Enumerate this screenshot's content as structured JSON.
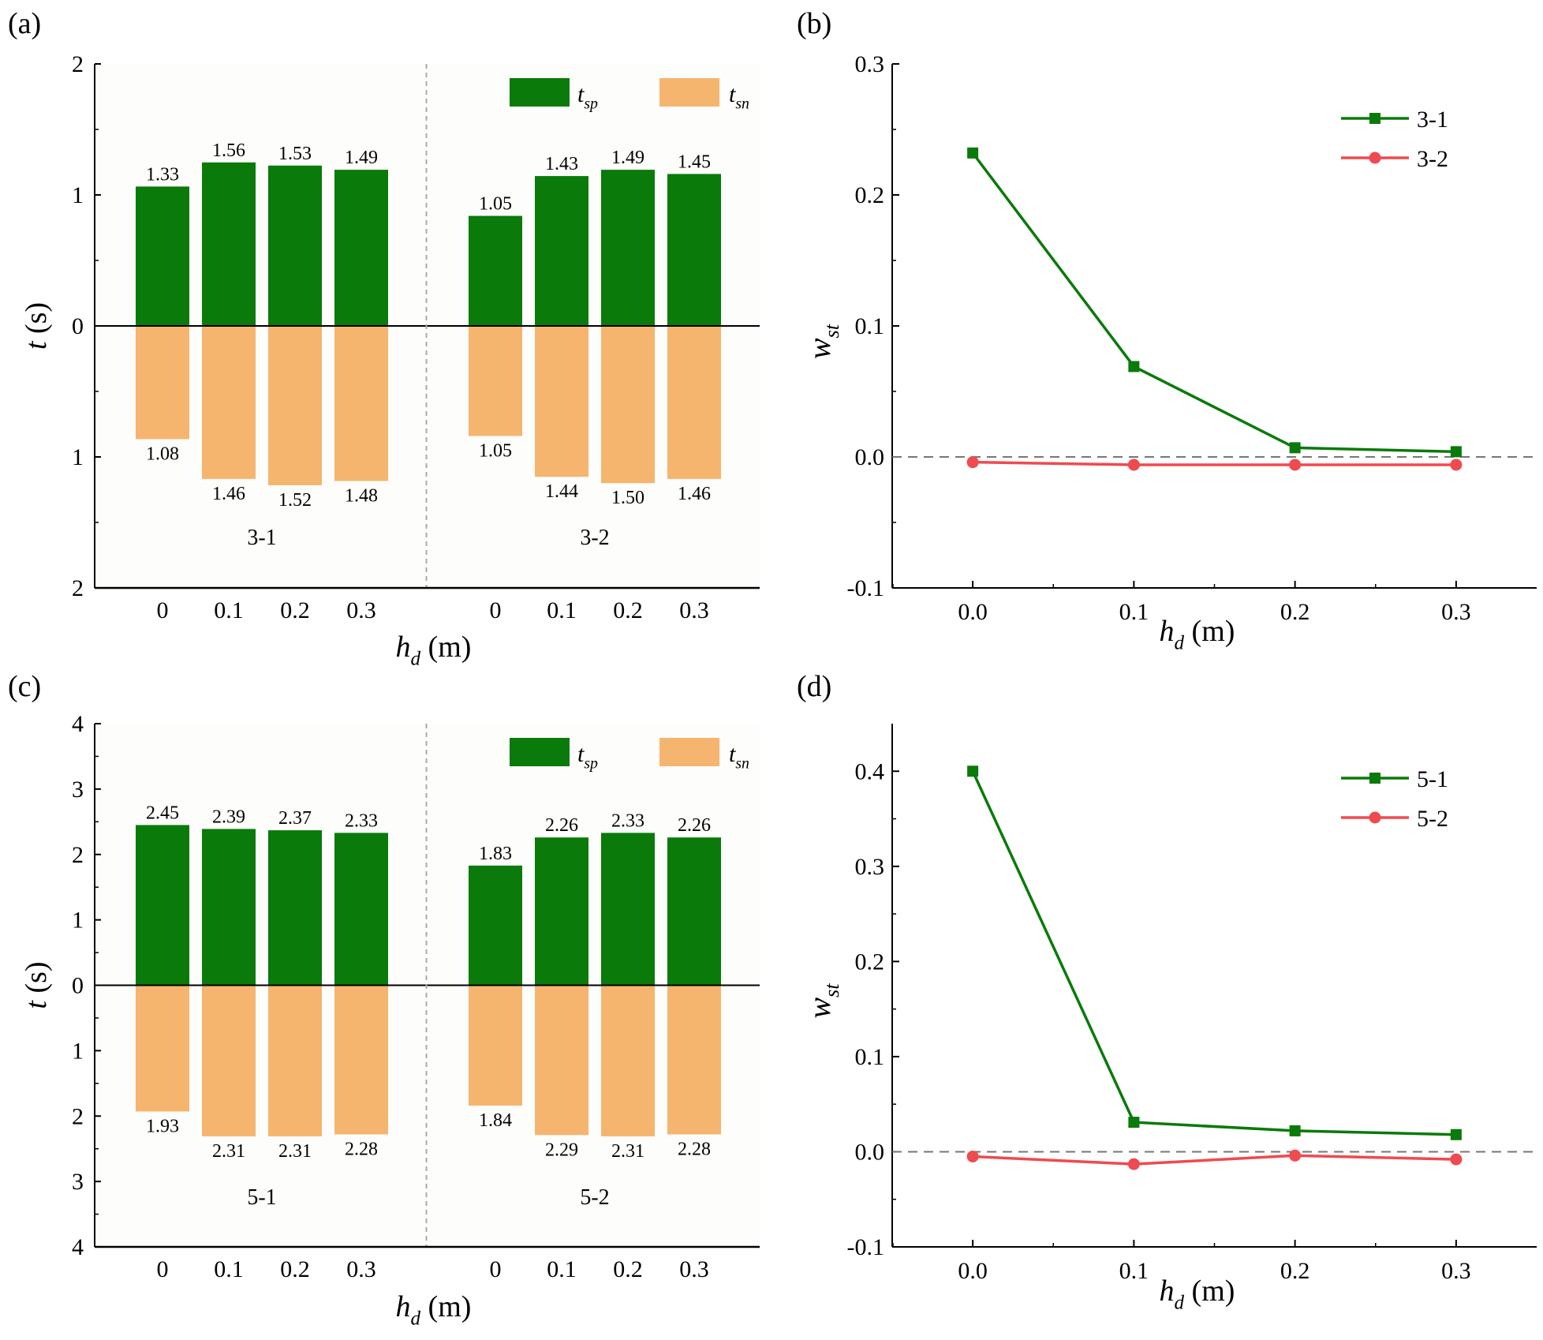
{
  "colors": {
    "positive": "#0a7a0a",
    "negative": "#f5b56f",
    "line_a": "#0a7a0a",
    "line_b": "#ef4a4f",
    "frame_bg": "#fdfdfb"
  },
  "chart_data": [
    {
      "panel": "(a)",
      "type": "bar",
      "ylabel": "t (s)",
      "xlabel": "h_d (m)",
      "ylim": [
        -2.5,
        2.5
      ],
      "ytick_labels": [
        "2",
        "1",
        "0",
        "1",
        "2"
      ],
      "categories": [
        "0",
        "0.1",
        "0.2",
        "0.3"
      ],
      "legend": [
        "t_sp",
        "t_sn"
      ],
      "groups": [
        {
          "name": "3-1",
          "tsp": [
            1.33,
            1.56,
            1.53,
            1.49
          ],
          "tsn": [
            1.08,
            1.46,
            1.52,
            1.48
          ],
          "tsp_labels": [
            "1.33",
            "1.56",
            "1.53",
            "1.49"
          ],
          "tsn_labels": [
            "1.08",
            "1.46",
            "1.52",
            "1.48"
          ]
        },
        {
          "name": "3-2",
          "tsp": [
            1.05,
            1.43,
            1.49,
            1.45
          ],
          "tsn": [
            1.05,
            1.44,
            1.5,
            1.46
          ],
          "tsp_labels": [
            "1.05",
            "1.43",
            "1.49",
            "1.45"
          ],
          "tsn_labels": [
            "1.05",
            "1.44",
            "1.50",
            "1.46"
          ]
        }
      ]
    },
    {
      "panel": "(b)",
      "type": "line",
      "ylabel": "w_st",
      "xlabel": "h_d (m)",
      "x": [
        0.0,
        0.1,
        0.2,
        0.3
      ],
      "xlim": [
        -0.05,
        0.35
      ],
      "ylim": [
        -0.1,
        0.3
      ],
      "xtick_labels": [
        "0.0",
        "0.1",
        "0.2",
        "0.3"
      ],
      "ytick_labels": [
        "-0.1",
        "0.0",
        "0.1",
        "0.2",
        "0.3"
      ],
      "yticks": [
        -0.1,
        0.0,
        0.1,
        0.2,
        0.3
      ],
      "series": [
        {
          "name": "3-1",
          "values": [
            0.232,
            0.069,
            0.007,
            0.004
          ],
          "marker": "square"
        },
        {
          "name": "3-2",
          "values": [
            -0.004,
            -0.006,
            -0.006,
            -0.006
          ],
          "marker": "circle"
        }
      ]
    },
    {
      "panel": "(c)",
      "type": "bar",
      "ylabel": "t (s)",
      "xlabel": "h_d (m)",
      "ylim": [
        -4,
        4
      ],
      "ytick_labels": [
        "4",
        "3",
        "2",
        "1",
        "0",
        "1",
        "2",
        "3",
        "4"
      ],
      "categories": [
        "0",
        "0.1",
        "0.2",
        "0.3"
      ],
      "legend": [
        "t_sp",
        "t_sn"
      ],
      "groups": [
        {
          "name": "5-1",
          "tsp": [
            2.45,
            2.39,
            2.37,
            2.33
          ],
          "tsn": [
            1.93,
            2.31,
            2.31,
            2.28
          ],
          "tsp_labels": [
            "2.45",
            "2.39",
            "2.37",
            "2.33"
          ],
          "tsn_labels": [
            "1.93",
            "2.31",
            "2.31",
            "2.28"
          ]
        },
        {
          "name": "5-2",
          "tsp": [
            1.83,
            2.26,
            2.33,
            2.26
          ],
          "tsn": [
            1.84,
            2.29,
            2.31,
            2.28
          ],
          "tsp_labels": [
            "1.83",
            "2.26",
            "2.33",
            "2.26"
          ],
          "tsn_labels": [
            "1.84",
            "2.29",
            "2.31",
            "2.28"
          ]
        }
      ]
    },
    {
      "panel": "(d)",
      "type": "line",
      "ylabel": "w_st",
      "xlabel": "h_d (m)",
      "x": [
        0.0,
        0.1,
        0.2,
        0.3
      ],
      "xlim": [
        -0.05,
        0.35
      ],
      "ylim": [
        -0.1,
        0.45
      ],
      "xtick_labels": [
        "0.0",
        "0.1",
        "0.2",
        "0.3"
      ],
      "ytick_labels": [
        "-0.1",
        "0.0",
        "0.1",
        "0.2",
        "0.3",
        "0.4"
      ],
      "yticks": [
        -0.1,
        0.0,
        0.1,
        0.2,
        0.3,
        0.4
      ],
      "series": [
        {
          "name": "5-1",
          "values": [
            0.4,
            0.031,
            0.022,
            0.018
          ],
          "marker": "square"
        },
        {
          "name": "5-2",
          "values": [
            -0.005,
            -0.013,
            -0.004,
            -0.008
          ],
          "marker": "circle"
        }
      ]
    }
  ]
}
